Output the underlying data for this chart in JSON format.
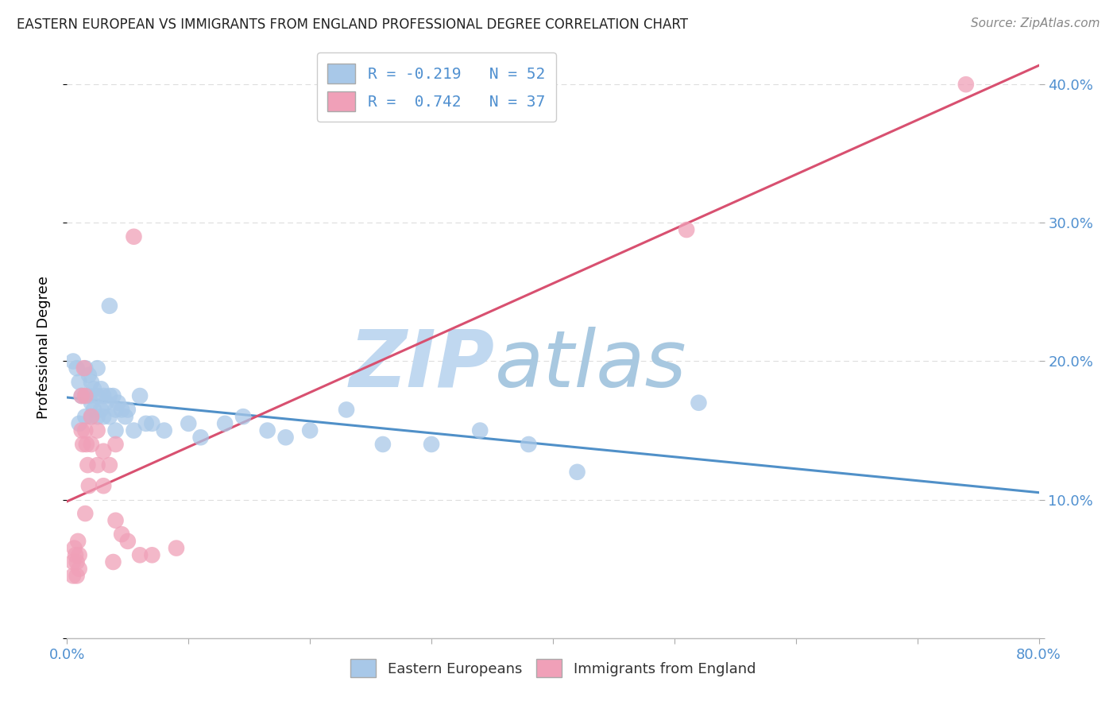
{
  "title": "EASTERN EUROPEAN VS IMMIGRANTS FROM ENGLAND PROFESSIONAL DEGREE CORRELATION CHART",
  "source": "Source: ZipAtlas.com",
  "ylabel": "Professional Degree",
  "xlim": [
    0.0,
    0.8
  ],
  "ylim": [
    0.0,
    0.42
  ],
  "xticks": [
    0.0,
    0.1,
    0.2,
    0.3,
    0.4,
    0.5,
    0.6,
    0.7,
    0.8
  ],
  "yticks": [
    0.0,
    0.1,
    0.2,
    0.3,
    0.4
  ],
  "R_blue": -0.219,
  "N_blue": 52,
  "R_pink": 0.742,
  "N_pink": 37,
  "blue_color": "#A8C8E8",
  "pink_color": "#F0A0B8",
  "blue_line_color": "#5090C8",
  "pink_line_color": "#D85070",
  "blue_scatter": [
    [
      0.005,
      0.2
    ],
    [
      0.008,
      0.195
    ],
    [
      0.01,
      0.185
    ],
    [
      0.01,
      0.155
    ],
    [
      0.012,
      0.175
    ],
    [
      0.015,
      0.195
    ],
    [
      0.015,
      0.175
    ],
    [
      0.015,
      0.16
    ],
    [
      0.018,
      0.19
    ],
    [
      0.018,
      0.175
    ],
    [
      0.02,
      0.185
    ],
    [
      0.02,
      0.17
    ],
    [
      0.02,
      0.16
    ],
    [
      0.022,
      0.18
    ],
    [
      0.022,
      0.165
    ],
    [
      0.025,
      0.195
    ],
    [
      0.025,
      0.175
    ],
    [
      0.025,
      0.16
    ],
    [
      0.028,
      0.18
    ],
    [
      0.028,
      0.165
    ],
    [
      0.03,
      0.175
    ],
    [
      0.03,
      0.16
    ],
    [
      0.032,
      0.17
    ],
    [
      0.035,
      0.24
    ],
    [
      0.035,
      0.175
    ],
    [
      0.035,
      0.16
    ],
    [
      0.038,
      0.175
    ],
    [
      0.04,
      0.165
    ],
    [
      0.04,
      0.15
    ],
    [
      0.042,
      0.17
    ],
    [
      0.045,
      0.165
    ],
    [
      0.048,
      0.16
    ],
    [
      0.05,
      0.165
    ],
    [
      0.055,
      0.15
    ],
    [
      0.06,
      0.175
    ],
    [
      0.065,
      0.155
    ],
    [
      0.07,
      0.155
    ],
    [
      0.08,
      0.15
    ],
    [
      0.1,
      0.155
    ],
    [
      0.11,
      0.145
    ],
    [
      0.13,
      0.155
    ],
    [
      0.145,
      0.16
    ],
    [
      0.165,
      0.15
    ],
    [
      0.18,
      0.145
    ],
    [
      0.2,
      0.15
    ],
    [
      0.23,
      0.165
    ],
    [
      0.26,
      0.14
    ],
    [
      0.3,
      0.14
    ],
    [
      0.34,
      0.15
    ],
    [
      0.38,
      0.14
    ],
    [
      0.42,
      0.12
    ],
    [
      0.52,
      0.17
    ]
  ],
  "pink_scatter": [
    [
      0.005,
      0.055
    ],
    [
      0.005,
      0.045
    ],
    [
      0.006,
      0.065
    ],
    [
      0.007,
      0.06
    ],
    [
      0.008,
      0.055
    ],
    [
      0.008,
      0.045
    ],
    [
      0.009,
      0.07
    ],
    [
      0.01,
      0.06
    ],
    [
      0.01,
      0.05
    ],
    [
      0.012,
      0.175
    ],
    [
      0.012,
      0.15
    ],
    [
      0.013,
      0.14
    ],
    [
      0.014,
      0.195
    ],
    [
      0.015,
      0.175
    ],
    [
      0.015,
      0.15
    ],
    [
      0.015,
      0.09
    ],
    [
      0.016,
      0.14
    ],
    [
      0.017,
      0.125
    ],
    [
      0.018,
      0.11
    ],
    [
      0.02,
      0.16
    ],
    [
      0.02,
      0.14
    ],
    [
      0.025,
      0.15
    ],
    [
      0.025,
      0.125
    ],
    [
      0.03,
      0.135
    ],
    [
      0.03,
      0.11
    ],
    [
      0.035,
      0.125
    ],
    [
      0.038,
      0.055
    ],
    [
      0.04,
      0.14
    ],
    [
      0.04,
      0.085
    ],
    [
      0.045,
      0.075
    ],
    [
      0.05,
      0.07
    ],
    [
      0.055,
      0.29
    ],
    [
      0.06,
      0.06
    ],
    [
      0.07,
      0.06
    ],
    [
      0.09,
      0.065
    ],
    [
      0.51,
      0.295
    ],
    [
      0.74,
      0.4
    ]
  ],
  "watermark_zip": "ZIP",
  "watermark_atlas": "atlas",
  "watermark_color": "#C8DCF0",
  "background_color": "#FFFFFF",
  "grid_color": "#DDDDDD",
  "tick_color": "#5090D0",
  "title_fontsize": 12,
  "axis_fontsize": 13,
  "legend_fontsize": 14
}
